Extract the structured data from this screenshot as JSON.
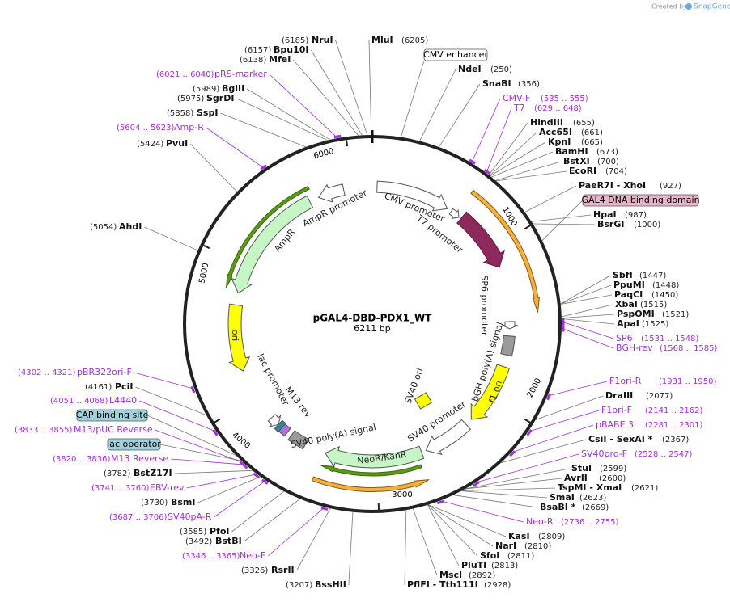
{
  "watermark": {
    "prefix": "Created by",
    "brand": "SnapGene"
  },
  "map": {
    "name": "pGAL4-DBD-PDX1_WT",
    "length": "6211 bp",
    "ring_ticks": [
      "1000",
      "2000",
      "3000",
      "4000",
      "5000",
      "6000"
    ],
    "features": [
      "AmpR promoter",
      "AmpR",
      "CMV promoter",
      "T7 promoter",
      "SP6 promoter",
      "bGH poly(A) signal",
      "f1 ori",
      "SV40 ori",
      "SV40 promoter",
      "NeoR/KanR",
      "SV40 poly(A) signal",
      "M13 rev",
      "lac promoter",
      "ori"
    ],
    "boxes": [
      "CMV enhancer",
      "GAL4 DNA binding domain",
      "CAP binding site",
      "lac operator"
    ],
    "sites": [
      {
        "name": "NruI",
        "position": "(6185)"
      },
      {
        "name": "Bpu10I",
        "position": "(6157)"
      },
      {
        "name": "MfeI",
        "position": "(6138)"
      },
      {
        "name": "BglII",
        "position": "(5989)"
      },
      {
        "name": "SgrDI",
        "position": "(5975)"
      },
      {
        "name": "SspI",
        "position": "(5858)"
      },
      {
        "name": "PvuI",
        "position": "(5424)"
      },
      {
        "name": "AhdI",
        "position": "(5054)"
      },
      {
        "name": "PciI",
        "position": "(4161)"
      },
      {
        "name": "BstZ17I",
        "position": "(3782)"
      },
      {
        "name": "BsmI",
        "position": "(3730)"
      },
      {
        "name": "PfoI",
        "position": "(3585)"
      },
      {
        "name": "BstBI",
        "position": "(3492)"
      },
      {
        "name": "RsrII",
        "position": "(3326)"
      },
      {
        "name": "BssHII",
        "position": "(3207)"
      },
      {
        "name": "MluI",
        "position": "(6205)"
      },
      {
        "name": "NdeI",
        "position": "(250)"
      },
      {
        "name": "SnaBI",
        "position": "(356)"
      },
      {
        "name": "HindIII",
        "position": "(655)"
      },
      {
        "name": "Acc65I",
        "position": "(661)"
      },
      {
        "name": "KpnI",
        "position": "(665)"
      },
      {
        "name": "BamHI",
        "position": "(673)"
      },
      {
        "name": "BstXI",
        "position": "(700)"
      },
      {
        "name": "EcoRI",
        "position": "(704)"
      },
      {
        "name": "PaeR7I  - XhoI",
        "position": "(927)"
      },
      {
        "name": "HpaI",
        "position": "(987)"
      },
      {
        "name": "BsrGI",
        "position": "(1000)"
      },
      {
        "name": "SbfI",
        "position": "(1447)"
      },
      {
        "name": "PpuMI",
        "position": "(1448)"
      },
      {
        "name": "PaqCI",
        "position": "(1450)"
      },
      {
        "name": "XbaI",
        "position": "(1515)"
      },
      {
        "name": "PspOMI",
        "position": "(1521)"
      },
      {
        "name": "ApaI",
        "position": "(1525)"
      },
      {
        "name": "DraIII",
        "position": "(2077)"
      },
      {
        "name": "CsiI  - SexAI *",
        "position": "(2367)"
      },
      {
        "name": "StuI",
        "position": "(2599)"
      },
      {
        "name": "AvrII",
        "position": "(2600)"
      },
      {
        "name": "TspMI  - XmaI",
        "position": "(2621)"
      },
      {
        "name": "SmaI",
        "position": "(2623)"
      },
      {
        "name": "BsaBI *",
        "position": "(2669)"
      },
      {
        "name": "KasI",
        "position": "(2809)"
      },
      {
        "name": "NarI",
        "position": "(2810)"
      },
      {
        "name": "SfoI",
        "position": "(2811)"
      },
      {
        "name": "PluTI",
        "position": "(2813)"
      },
      {
        "name": "MscI",
        "position": "(2892)"
      },
      {
        "name": "PflFI  - Tth111I",
        "position": "(2928)"
      }
    ],
    "primers": [
      {
        "name": "pRS-marker",
        "range": "(6021 .. 6040)"
      },
      {
        "name": "Amp-R",
        "range": "(5604 .. 5623)"
      },
      {
        "name": "pBR322ori-F",
        "range": "(4302 .. 4321)"
      },
      {
        "name": "L4440",
        "range": "(4051 .. 4068)"
      },
      {
        "name": "M13/pUC Reverse",
        "range": "(3833 .. 3855)"
      },
      {
        "name": "M13 Reverse",
        "range": "(3820 .. 3836)"
      },
      {
        "name": "EBV-rev",
        "range": "(3741 .. 3760)"
      },
      {
        "name": "SV40pA-R",
        "range": "(3687 .. 3706)"
      },
      {
        "name": "Neo-F",
        "range": "(3346 .. 3365)"
      },
      {
        "name": "CMV-F",
        "range": "(535 .. 555)"
      },
      {
        "name": "T7",
        "range": "(629 .. 648)"
      },
      {
        "name": "SP6",
        "range": "(1531 .. 1548)"
      },
      {
        "name": "BGH-rev",
        "range": "(1568 .. 1585)"
      },
      {
        "name": "F1ori-R",
        "range": "(1931 .. 1950)"
      },
      {
        "name": "F1ori-F",
        "range": "(2141 .. 2162)"
      },
      {
        "name": "pBABE 3'",
        "range": "(2281 .. 2301)"
      },
      {
        "name": "SV40pro-F",
        "range": "(2528 .. 2547)"
      },
      {
        "name": "Neo-R",
        "range": "(2736 .. 2755)"
      }
    ]
  }
}
